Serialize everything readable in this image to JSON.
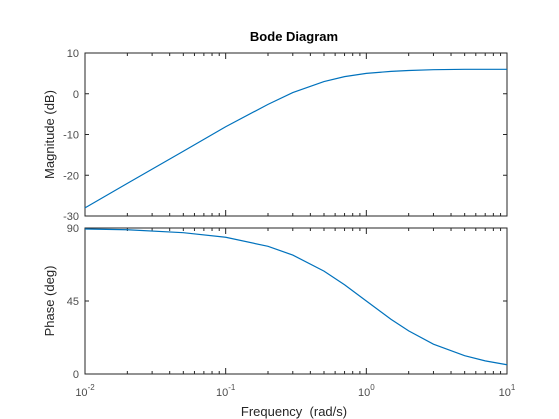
{
  "chart_data": {
    "type": "line",
    "title": "Bode Diagram",
    "xlabel": "Frequency  (rad/s)",
    "xscale": "log",
    "xlim": [
      0.01,
      10
    ],
    "x_ticks": [
      0.01,
      0.1,
      1,
      10
    ],
    "x_tick_labels": [
      {
        "base": "10",
        "exp": "-2"
      },
      {
        "base": "10",
        "exp": "-1"
      },
      {
        "base": "10",
        "exp": "0"
      },
      {
        "base": "10",
        "exp": "1"
      }
    ],
    "grid": false,
    "line_color": "#0072bd",
    "panels": [
      {
        "id": "magnitude",
        "ylabel": "Magnitude (dB)",
        "ylim": [
          -30,
          10
        ],
        "y_ticks": [
          -30,
          -20,
          -10,
          0,
          10
        ],
        "y_tick_labels": [
          "-30",
          "-20",
          "-10",
          "0",
          "10"
        ],
        "series": [
          {
            "x": [
              0.01,
              0.02,
              0.05,
              0.1,
              0.2,
              0.3,
              0.5,
              0.7,
              1,
              1.5,
              2,
              3,
              5,
              7,
              10
            ],
            "values": [
              -28,
              -22,
              -14.1,
              -8.1,
              -2.6,
              0.3,
              3.0,
              4.2,
              5.0,
              5.5,
              5.7,
              5.9,
              6.0,
              6.0,
              6.0
            ]
          }
        ]
      },
      {
        "id": "phase",
        "ylabel": "Phase (deg)",
        "ylim": [
          0,
          90
        ],
        "y_ticks": [
          0,
          45,
          90
        ],
        "y_tick_labels": [
          "0",
          "45",
          "90"
        ],
        "series": [
          {
            "x": [
              0.01,
              0.02,
              0.05,
              0.1,
              0.2,
              0.3,
              0.5,
              0.7,
              1,
              1.5,
              2,
              3,
              5,
              7,
              10
            ],
            "values": [
              89.4,
              88.9,
              87.1,
              84.3,
              78.7,
              73.3,
              63.4,
              55.0,
              45.0,
              33.7,
              26.6,
              18.4,
              11.3,
              8.1,
              5.7
            ]
          }
        ]
      }
    ]
  }
}
